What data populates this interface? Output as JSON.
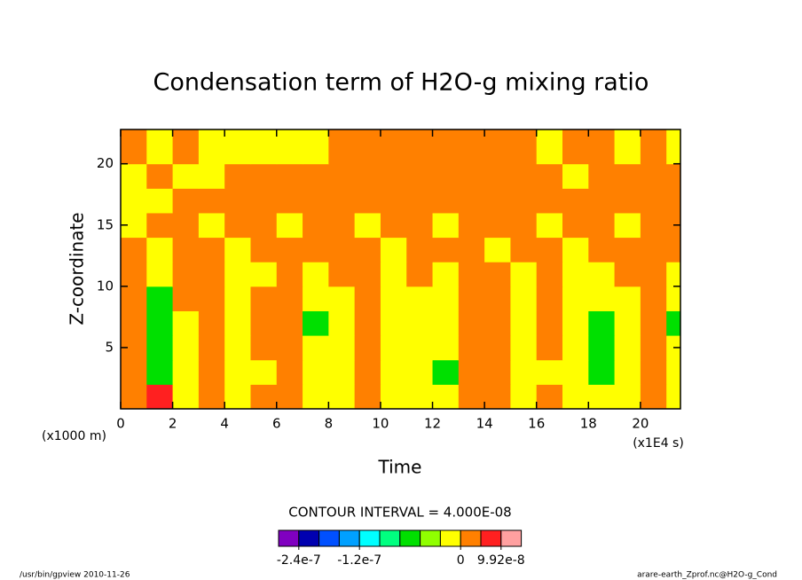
{
  "chart_data": {
    "type": "contour",
    "title": "Condensation term of H2O-g mixing ratio",
    "xlabel": "Time",
    "ylabel": "Z-coordinate",
    "x_unit": "(x1E4 s)",
    "y_unit": "(x1000 m)",
    "contour_interval": "CONTOUR INTERVAL = 4.000E-08",
    "footer_left": "/usr/bin/gpview  2010-11-26",
    "footer_right": "arare-earth_Zprof.nc@H2O-g_Cond",
    "xlim": [
      0,
      21.54
    ],
    "ylim": [
      0,
      22.8
    ],
    "xticks": [
      0,
      2,
      4,
      6,
      8,
      10,
      12,
      14,
      16,
      18,
      20
    ],
    "yticks": [
      5,
      10,
      15,
      20
    ],
    "x": [
      0.5,
      1.5,
      2.5,
      3.5,
      4.5,
      5.5,
      6.5,
      7.5,
      8.5,
      9.5,
      10.5,
      11.5,
      12.5,
      13.5,
      14.5,
      15.5,
      16.5,
      17.5,
      18.5,
      19.5,
      20.5,
      21.5
    ],
    "y": [
      1,
      3,
      5,
      7,
      9,
      11,
      13,
      15,
      17,
      19,
      21
    ],
    "z": [
      [
        2e-08,
        7e-08,
        -1e-08,
        2e-08,
        -1e-08,
        2e-08,
        2e-08,
        -1e-08,
        -1e-08,
        2e-08,
        -1e-08,
        -1e-08,
        -1e-08,
        2e-08,
        2e-08,
        -1e-08,
        2e-08,
        -1e-08,
        -1e-08,
        -1e-08,
        2e-08,
        -1e-08
      ],
      [
        2e-08,
        -6e-08,
        -1e-08,
        2e-08,
        -1e-08,
        -1e-08,
        2e-08,
        -1e-08,
        -1e-08,
        2e-08,
        -1e-08,
        -1e-08,
        -6e-08,
        2e-08,
        2e-08,
        -1e-08,
        -1e-08,
        -1e-08,
        -6e-08,
        -1e-08,
        2e-08,
        -1e-08
      ],
      [
        2e-08,
        -6e-08,
        -1e-08,
        2e-08,
        -1e-08,
        2e-08,
        2e-08,
        -1e-08,
        -1e-08,
        2e-08,
        -1e-08,
        -1e-08,
        -1e-08,
        2e-08,
        2e-08,
        -1e-08,
        2e-08,
        -1e-08,
        -6e-08,
        -1e-08,
        2e-08,
        -1e-08
      ],
      [
        2e-08,
        -6e-08,
        -1e-08,
        2e-08,
        -1e-08,
        2e-08,
        2e-08,
        -6e-08,
        -1e-08,
        2e-08,
        -1e-08,
        -1e-08,
        -1e-08,
        2e-08,
        2e-08,
        -1e-08,
        2e-08,
        -1e-08,
        -6e-08,
        -1e-08,
        2e-08,
        -6e-08
      ],
      [
        2e-08,
        -6e-08,
        2e-08,
        2e-08,
        -1e-08,
        2e-08,
        2e-08,
        -1e-08,
        -1e-08,
        2e-08,
        -1e-08,
        -1e-08,
        -1e-08,
        2e-08,
        2e-08,
        -1e-08,
        2e-08,
        -1e-08,
        -1e-08,
        -1e-08,
        2e-08,
        -1e-08
      ],
      [
        2e-08,
        -1e-08,
        2e-08,
        2e-08,
        -1e-08,
        -1e-08,
        2e-08,
        -1e-08,
        2e-08,
        2e-08,
        -1e-08,
        2e-08,
        -1e-08,
        2e-08,
        2e-08,
        -1e-08,
        2e-08,
        -1e-08,
        -1e-08,
        2e-08,
        2e-08,
        -1e-08
      ],
      [
        2e-08,
        -1e-08,
        2e-08,
        2e-08,
        -1e-08,
        2e-08,
        2e-08,
        2e-08,
        2e-08,
        2e-08,
        -1e-08,
        2e-08,
        2e-08,
        2e-08,
        -1e-08,
        2e-08,
        2e-08,
        -1e-08,
        2e-08,
        2e-08,
        2e-08,
        2e-08
      ],
      [
        -1e-08,
        2e-08,
        2e-08,
        -1e-08,
        2e-08,
        2e-08,
        -1e-08,
        2e-08,
        2e-08,
        -1e-08,
        2e-08,
        2e-08,
        -1e-08,
        2e-08,
        2e-08,
        2e-08,
        -1e-08,
        2e-08,
        2e-08,
        -1e-08,
        2e-08,
        2e-08
      ],
      [
        -1e-08,
        -1e-08,
        2e-08,
        2e-08,
        2e-08,
        2e-08,
        2e-08,
        2e-08,
        2e-08,
        2e-08,
        2e-08,
        2e-08,
        2e-08,
        2e-08,
        2e-08,
        2e-08,
        2e-08,
        2e-08,
        2e-08,
        2e-08,
        2e-08,
        2e-08
      ],
      [
        -1e-08,
        2e-08,
        -1e-08,
        -1e-08,
        2e-08,
        2e-08,
        2e-08,
        2e-08,
        2e-08,
        2e-08,
        2e-08,
        2e-08,
        2e-08,
        2e-08,
        2e-08,
        2e-08,
        2e-08,
        -1e-08,
        2e-08,
        2e-08,
        2e-08,
        2e-08
      ],
      [
        2e-08,
        -1e-08,
        2e-08,
        -1e-08,
        -1e-08,
        -1e-08,
        -1e-08,
        -1e-08,
        2e-08,
        2e-08,
        2e-08,
        2e-08,
        2e-08,
        2e-08,
        2e-08,
        2e-08,
        -1e-08,
        2e-08,
        2e-08,
        -1e-08,
        2e-08,
        -1e-08
      ]
    ],
    "levels": [
      -2.4e-07,
      -2e-07,
      -1.6e-07,
      -1.2e-07,
      -9.6e-08,
      -7.2e-08,
      -4.8e-08,
      -2.4e-08,
      0,
      4.96e-08,
      9.92e-08
    ],
    "colors": [
      "#8000c0",
      "#0000b0",
      "#0050ff",
      "#00a0ff",
      "#00ffff",
      "#00ff80",
      "#00e000",
      "#90ff00",
      "#ffff00",
      "#ff8000",
      "#ff2020",
      "#ffa0a0"
    ],
    "colorbar_ticks": [
      -2.4e-07,
      -1.2e-07,
      0,
      9.92e-08
    ]
  }
}
